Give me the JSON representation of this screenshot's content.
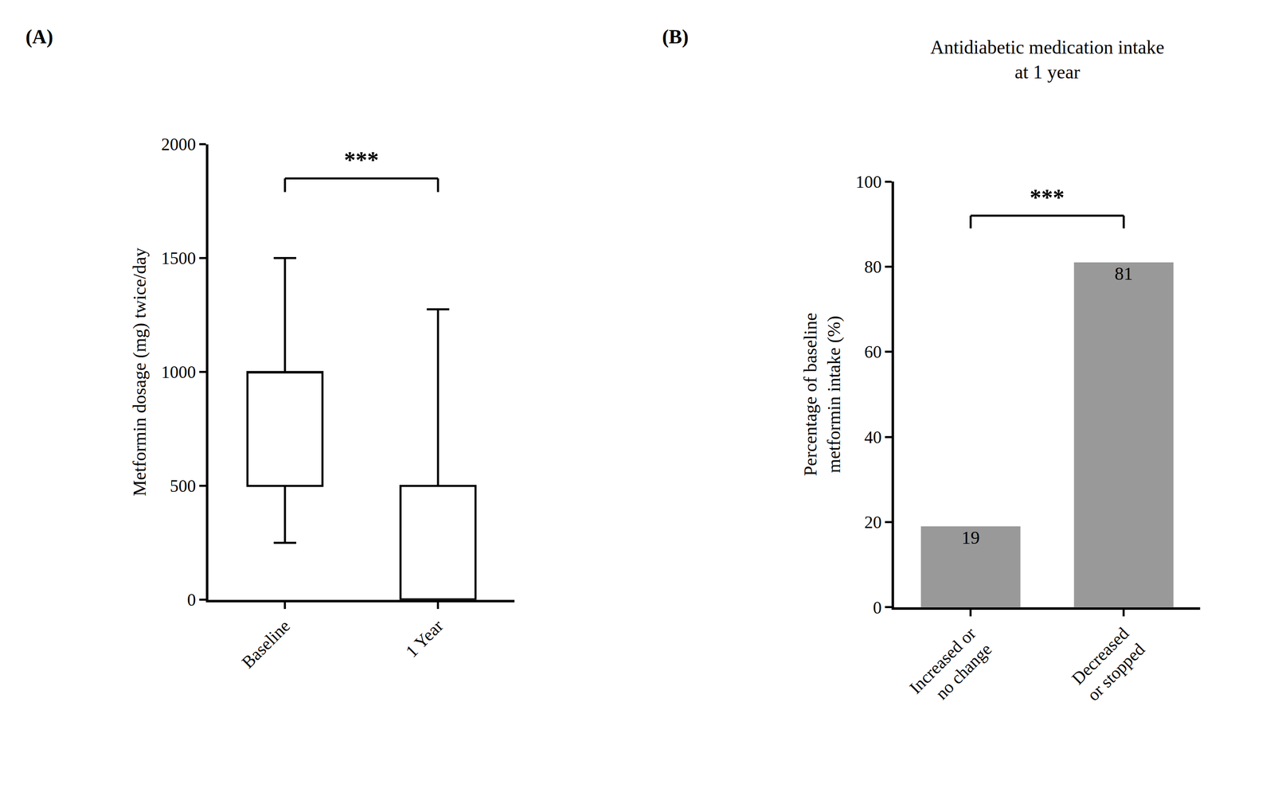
{
  "chart_data": [
    {
      "type": "box",
      "panel_label": "(A)",
      "y_label": "Metformin dosage (mg) twice/day",
      "categories": [
        "Baseline",
        "1 Year"
      ],
      "lower_whisker": [
        250,
        0
      ],
      "q1": [
        500,
        0
      ],
      "median": [
        1000,
        0
      ],
      "q3": [
        1000,
        500
      ],
      "upper_whisker": [
        1500,
        1275
      ],
      "color": "#000000",
      "ylim": [
        0,
        2000
      ],
      "yticks": [
        0,
        500,
        1000,
        1500,
        2000
      ],
      "grid": false,
      "significance": {
        "text": "***",
        "between": [
          "Baseline",
          "1 Year"
        ]
      }
    },
    {
      "type": "bar",
      "panel_label": "(B)",
      "title": "Antidiabetic medication intake\nat 1 year",
      "y_label": "Percentage of baseline\nmetformin intake (%)",
      "categories": [
        "Increased or\nno change",
        "Decreased\nor stopped"
      ],
      "values": [
        19,
        81
      ],
      "color": "#999999",
      "data_labels": true,
      "ylim": [
        0,
        100
      ],
      "yticks": [
        0,
        20,
        40,
        60,
        80,
        100
      ],
      "grid": false,
      "significance": {
        "text": "***",
        "between": [
          "Increased or\nno change",
          "Decreased\nor stopped"
        ]
      }
    }
  ]
}
